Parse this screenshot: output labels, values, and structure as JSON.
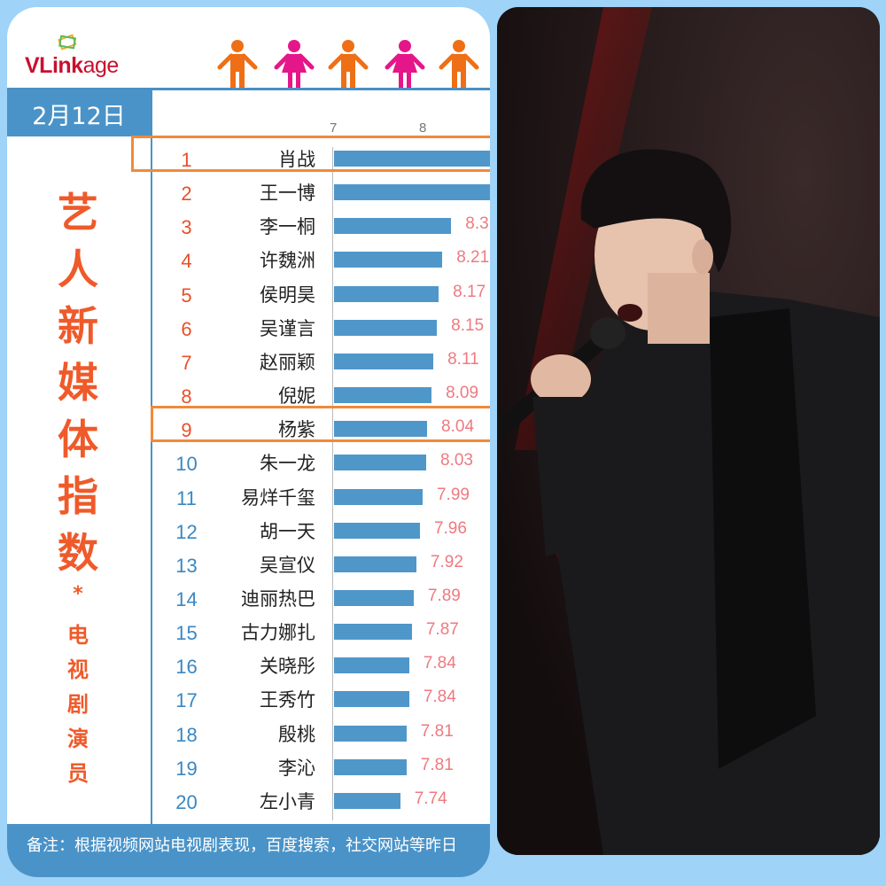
{
  "brand": {
    "logo_text_bold": "VLink",
    "logo_text_light": "age"
  },
  "header_icons": [
    "male-person-icon",
    "female-person-icon",
    "male-person-icon",
    "female-person-icon",
    "male-person-icon"
  ],
  "colors": {
    "male": "#ee6f16",
    "female": "#e5168a",
    "band": "#4a93c8",
    "bar": "#4f97c9",
    "rank_top": "#e8502a",
    "rank_rest": "#3a87c2",
    "value": "#ee7a80",
    "highlight": "#ef8a3a",
    "background": "#9fd3f7"
  },
  "date": "2月12日",
  "title_chars": [
    "艺",
    "人",
    "新",
    "媒",
    "体",
    "指",
    "数"
  ],
  "star": "*",
  "subtitle_chars": [
    "电",
    "视",
    "剧",
    "演",
    "员"
  ],
  "footer": "备注：根据视频网站电视剧表现，百度搜索，社交网站等昨日",
  "chart_data": {
    "type": "bar",
    "orientation": "horizontal",
    "xlim": [
      7,
      8.75
    ],
    "x_ticks": [
      "7",
      "8"
    ],
    "highlighted_ranks": [
      1,
      9
    ],
    "ranks": [
      "1",
      "2",
      "3",
      "4",
      "5",
      "6",
      "7",
      "8",
      "9",
      "10",
      "11",
      "12",
      "13",
      "14",
      "15",
      "16",
      "17",
      "18",
      "19",
      "20"
    ],
    "categories": [
      "肖战",
      "王一博",
      "李一桐",
      "许魏洲",
      "侯明昊",
      "吴谨言",
      "赵丽颖",
      "倪妮",
      "杨紫",
      "朱一龙",
      "易烊千玺",
      "胡一天",
      "吴宣仪",
      "迪丽热巴",
      "古力娜扎",
      "关晓彤",
      "王秀竹",
      "殷桃",
      "李沁",
      "左小青"
    ],
    "values": [
      null,
      null,
      8.31,
      8.21,
      8.17,
      8.15,
      8.11,
      8.09,
      8.04,
      8.03,
      7.99,
      7.96,
      7.92,
      7.89,
      7.87,
      7.84,
      7.84,
      7.81,
      7.81,
      7.74
    ],
    "value_labels": [
      "",
      "",
      "8.3",
      "8.21",
      "8.17",
      "8.15",
      "8.11",
      "8.09",
      "8.04",
      "8.03",
      "7.99",
      "7.96",
      "7.92",
      "7.89",
      "7.87",
      "7.84",
      "7.84",
      "7.81",
      "7.81",
      "7.74"
    ]
  }
}
